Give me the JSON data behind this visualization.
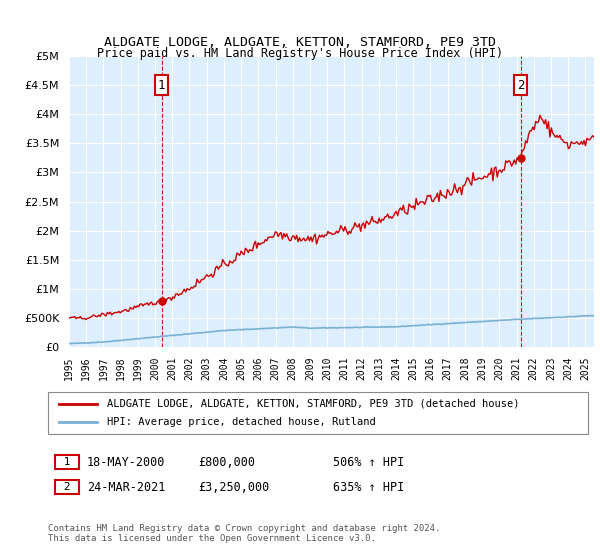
{
  "title": "ALDGATE LODGE, ALDGATE, KETTON, STAMFORD, PE9 3TD",
  "subtitle": "Price paid vs. HM Land Registry's House Price Index (HPI)",
  "legend_line1": "ALDGATE LODGE, ALDGATE, KETTON, STAMFORD, PE9 3TD (detached house)",
  "legend_line2": "HPI: Average price, detached house, Rutland",
  "annotation1_label": "1",
  "annotation1_date": "18-MAY-2000",
  "annotation1_price": "£800,000",
  "annotation1_hpi": "506% ↑ HPI",
  "annotation1_year": 2000.38,
  "annotation1_value": 800000,
  "annotation2_label": "2",
  "annotation2_date": "24-MAR-2021",
  "annotation2_price": "£3,250,000",
  "annotation2_hpi": "635% ↑ HPI",
  "annotation2_year": 2021.23,
  "annotation2_value": 3250000,
  "ylim": [
    0,
    5000000
  ],
  "xlim_start": 1995,
  "xlim_end": 2025.5,
  "red_color": "#cc0000",
  "blue_color": "#7ab0d4",
  "bg_color": "#ddeeff",
  "footer": "Contains HM Land Registry data © Crown copyright and database right 2024.\nThis data is licensed under the Open Government Licence v3.0.",
  "yticks": [
    0,
    500000,
    1000000,
    1500000,
    2000000,
    2500000,
    3000000,
    3500000,
    4000000,
    4500000,
    5000000
  ]
}
